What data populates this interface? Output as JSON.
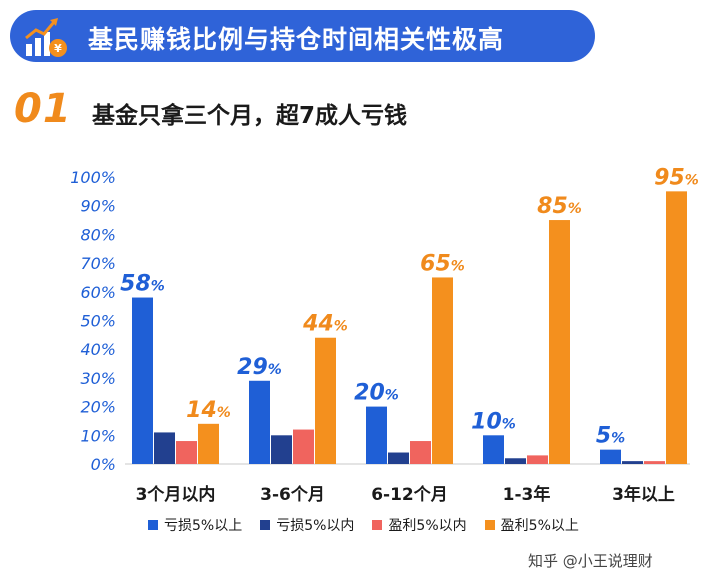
{
  "header": {
    "title": "基民赚钱比例与持仓时间相关性极高",
    "icon": "rising-bar-chart-coin-icon"
  },
  "section": {
    "number": "01",
    "title": "基金只拿三个月，超7成人亏钱"
  },
  "colors": {
    "banner": "#2f63d8",
    "loss_over_5": "#1f5fd6",
    "loss_under_5": "#22408f",
    "gain_under_5": "#f0645e",
    "gain_over_5": "#f4901e",
    "label_blue": "#1f5fd6",
    "label_orange": "#f08a1c"
  },
  "chart_data": {
    "type": "bar",
    "title": "",
    "xlabel": "",
    "ylabel": "",
    "ylim": [
      0,
      100
    ],
    "y_ticks": [
      "0%",
      "10%",
      "20%",
      "30%",
      "40%",
      "50%",
      "60%",
      "70%",
      "80%",
      "90%",
      "100%"
    ],
    "categories": [
      "3个月以内",
      "3-6个月",
      "6-12个月",
      "1-3年",
      "3年以上"
    ],
    "series": [
      {
        "name": "亏损5%以上",
        "color": "#1f5fd6",
        "values": [
          58,
          29,
          20,
          10,
          5
        ]
      },
      {
        "name": "亏损5%以内",
        "color": "#22408f",
        "values": [
          11,
          10,
          4,
          2,
          1
        ]
      },
      {
        "name": "盈利5%以内",
        "color": "#f0645e",
        "values": [
          8,
          12,
          8,
          3,
          1
        ]
      },
      {
        "name": "盈利5%以上",
        "color": "#f4901e",
        "values": [
          14,
          44,
          65,
          85,
          95
        ]
      }
    ],
    "data_labels": [
      {
        "category_index": 0,
        "series_index": 0,
        "text": "58",
        "unit": "%"
      },
      {
        "category_index": 0,
        "series_index": 3,
        "text": "14",
        "unit": "%"
      },
      {
        "category_index": 1,
        "series_index": 0,
        "text": "29",
        "unit": "%"
      },
      {
        "category_index": 1,
        "series_index": 3,
        "text": "44",
        "unit": "%"
      },
      {
        "category_index": 2,
        "series_index": 0,
        "text": "20",
        "unit": "%"
      },
      {
        "category_index": 2,
        "series_index": 3,
        "text": "65",
        "unit": "%"
      },
      {
        "category_index": 3,
        "series_index": 0,
        "text": "10",
        "unit": "%"
      },
      {
        "category_index": 3,
        "series_index": 3,
        "text": "85",
        "unit": "%"
      },
      {
        "category_index": 4,
        "series_index": 0,
        "text": "5",
        "unit": "%"
      },
      {
        "category_index": 4,
        "series_index": 3,
        "text": "95",
        "unit": "%"
      }
    ],
    "grid": false,
    "legend_position": "bottom"
  },
  "watermark": "知乎 @小王说理财"
}
